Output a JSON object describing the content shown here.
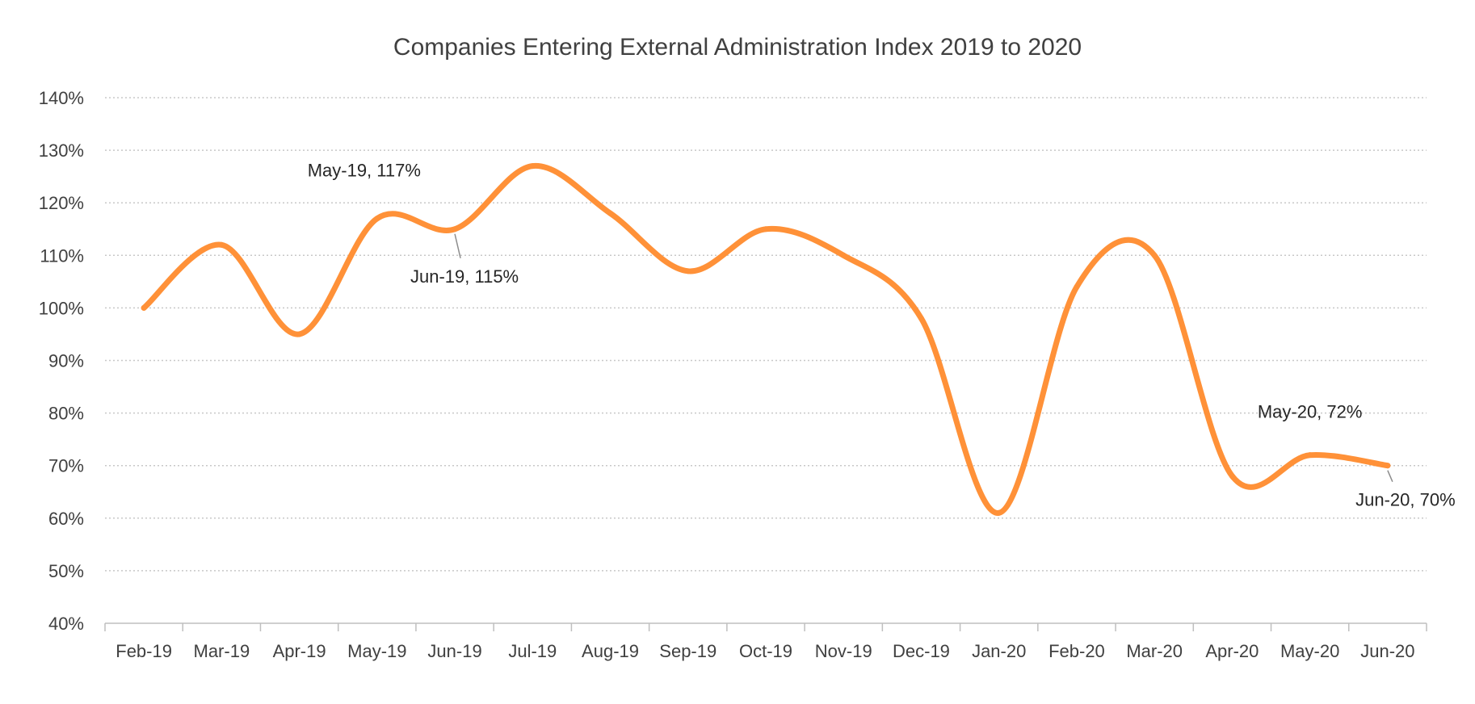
{
  "chart_data": {
    "type": "line",
    "title": "Companies Entering External Administration Index 2019 to 2020",
    "xlabel": "",
    "ylabel": "",
    "categories": [
      "Feb-19",
      "Mar-19",
      "Apr-19",
      "May-19",
      "Jun-19",
      "Jul-19",
      "Aug-19",
      "Sep-19",
      "Oct-19",
      "Nov-19",
      "Dec-19",
      "Jan-20",
      "Feb-20",
      "Mar-20",
      "Apr-20",
      "May-20",
      "Jun-20"
    ],
    "series": [
      {
        "values": [
          100,
          112,
          95,
          117,
          115,
          127,
          118,
          107,
          115,
          110,
          98,
          61,
          104,
          110,
          68,
          72,
          70
        ],
        "color": "#FF9138"
      }
    ],
    "ylim": [
      40,
      140
    ],
    "yticks": [
      "40%",
      "50%",
      "60%",
      "70%",
      "80%",
      "90%",
      "100%",
      "110%",
      "120%",
      "130%",
      "140%"
    ],
    "grid": true,
    "smooth": true,
    "data_labels": [
      {
        "index": 3,
        "text": "May-19, 117%"
      },
      {
        "index": 4,
        "text": "Jun-19, 115%"
      },
      {
        "index": 15,
        "text": "May-20, 72%"
      },
      {
        "index": 16,
        "text": "Jun-20, 70%"
      }
    ]
  }
}
